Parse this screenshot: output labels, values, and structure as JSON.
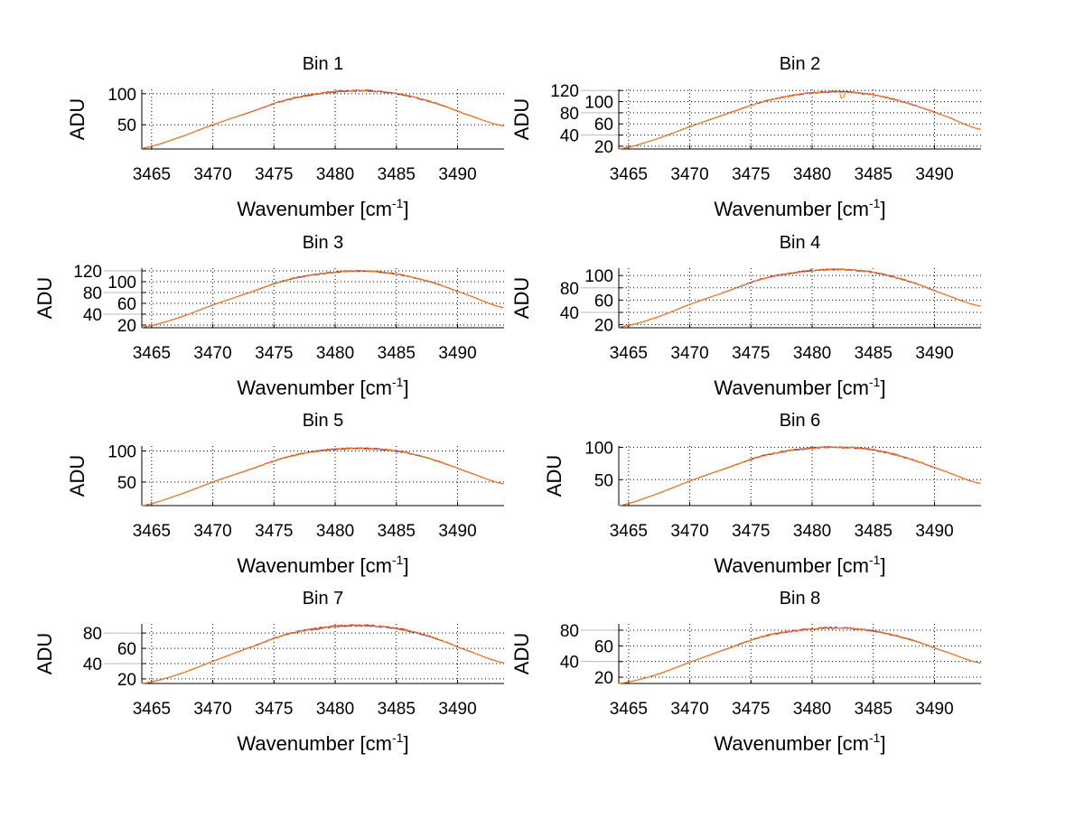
{
  "chart_data": [
    {
      "type": "line",
      "title": "Bin 1",
      "xlabel": "Wavenumber [cm",
      "xlabel_sup": "-1",
      "xlabel_end": "]",
      "ylabel": "ADU",
      "xlim": [
        3464.2,
        3493.8
      ],
      "ylim": [
        11,
        107
      ],
      "xticks": [
        3465,
        3470,
        3475,
        3480,
        3485,
        3490
      ],
      "yticks": [
        50,
        100
      ],
      "grid": true,
      "x": [
        3464.2,
        3467,
        3470,
        3473,
        3476,
        3479,
        3482,
        3485,
        3488,
        3491,
        3493.8
      ],
      "y": [
        12,
        28,
        50,
        70,
        90,
        101,
        105,
        100,
        86,
        65,
        48
      ]
    },
    {
      "type": "line",
      "title": "Bin 2",
      "xlabel": "Wavenumber [cm",
      "xlabel_sup": "-1",
      "xlabel_end": "]",
      "ylabel": "ADU",
      "xlim": [
        3464.2,
        3493.8
      ],
      "ylim": [
        15,
        122
      ],
      "xticks": [
        3465,
        3470,
        3475,
        3480,
        3485,
        3490
      ],
      "yticks": [
        20,
        40,
        60,
        80,
        100,
        120
      ],
      "grid": true,
      "x": [
        3464.2,
        3467,
        3470,
        3473,
        3476,
        3479,
        3482,
        3485,
        3488,
        3491,
        3493.8
      ],
      "y": [
        15,
        31,
        55,
        78,
        100,
        113,
        118,
        112,
        96,
        73,
        50
      ]
    },
    {
      "type": "line",
      "title": "Bin 3",
      "xlabel": "Wavenumber [cm",
      "xlabel_sup": "-1",
      "xlabel_end": "]",
      "ylabel": "ADU",
      "xlim": [
        3464.2,
        3493.8
      ],
      "ylim": [
        15,
        125
      ],
      "xticks": [
        3465,
        3470,
        3475,
        3480,
        3485,
        3490
      ],
      "yticks": [
        20,
        40,
        60,
        80,
        100,
        120
      ],
      "grid": true,
      "x": [
        3464.2,
        3467,
        3470,
        3473,
        3476,
        3479,
        3482,
        3485,
        3488,
        3491,
        3493.8
      ],
      "y": [
        16,
        32,
        57,
        80,
        103,
        115,
        120,
        114,
        98,
        74,
        52
      ]
    },
    {
      "type": "line",
      "title": "Bin 4",
      "xlabel": "Wavenumber [cm",
      "xlabel_sup": "-1",
      "xlabel_end": "]",
      "ylabel": "ADU",
      "xlim": [
        3464.2,
        3493.8
      ],
      "ylim": [
        15,
        112
      ],
      "xticks": [
        3465,
        3470,
        3475,
        3480,
        3485,
        3490
      ],
      "yticks": [
        20,
        40,
        60,
        80,
        100
      ],
      "grid": true,
      "x": [
        3464.2,
        3467,
        3470,
        3473,
        3476,
        3479,
        3482,
        3485,
        3488,
        3491,
        3493.8
      ],
      "y": [
        16,
        30,
        53,
        74,
        95,
        106,
        110,
        105,
        90,
        68,
        50
      ]
    },
    {
      "type": "line",
      "title": "Bin 5",
      "xlabel": "Wavenumber [cm",
      "xlabel_sup": "-1",
      "xlabel_end": "]",
      "ylabel": "ADU",
      "xlim": [
        3464.2,
        3493.8
      ],
      "ylim": [
        12,
        108
      ],
      "xticks": [
        3465,
        3470,
        3475,
        3480,
        3485,
        3490
      ],
      "yticks": [
        50,
        100
      ],
      "grid": true,
      "x": [
        3464.2,
        3467,
        3470,
        3473,
        3476,
        3479,
        3482,
        3485,
        3488,
        3491,
        3493.8
      ],
      "y": [
        12,
        28,
        50,
        70,
        90,
        101,
        104,
        100,
        86,
        65,
        47
      ]
    },
    {
      "type": "line",
      "title": "Bin 6",
      "xlabel": "Wavenumber [cm",
      "xlabel_sup": "-1",
      "xlabel_end": "]",
      "ylabel": "ADU",
      "xlim": [
        3464.2,
        3493.8
      ],
      "ylim": [
        10,
        102
      ],
      "xticks": [
        3465,
        3470,
        3475,
        3480,
        3485,
        3490
      ],
      "yticks": [
        50,
        100
      ],
      "grid": true,
      "x": [
        3464.2,
        3467,
        3470,
        3473,
        3476,
        3479,
        3482,
        3485,
        3488,
        3491,
        3493.8
      ],
      "y": [
        10,
        26,
        48,
        68,
        87,
        97,
        100,
        96,
        82,
        62,
        44
      ]
    },
    {
      "type": "line",
      "title": "Bin 7",
      "xlabel": "Wavenumber [cm",
      "xlabel_sup": "-1",
      "xlabel_end": "]",
      "ylabel": "ADU",
      "xlim": [
        3464.2,
        3493.8
      ],
      "ylim": [
        14,
        92
      ],
      "xticks": [
        3465,
        3470,
        3475,
        3480,
        3485,
        3490
      ],
      "yticks": [
        20,
        40,
        60,
        80
      ],
      "grid": true,
      "x": [
        3464.2,
        3467,
        3470,
        3473,
        3476,
        3479,
        3482,
        3485,
        3488,
        3491,
        3493.8
      ],
      "y": [
        14,
        25,
        43,
        61,
        78,
        87,
        90,
        86,
        74,
        56,
        41
      ]
    },
    {
      "type": "line",
      "title": "Bin 8",
      "xlabel": "Wavenumber [cm",
      "xlabel_sup": "-1",
      "xlabel_end": "]",
      "ylabel": "ADU",
      "xlim": [
        3464.2,
        3493.8
      ],
      "ylim": [
        12,
        88
      ],
      "xticks": [
        3465,
        3470,
        3475,
        3480,
        3485,
        3490
      ],
      "yticks": [
        20,
        40,
        60,
        80
      ],
      "grid": true,
      "x": [
        3464.2,
        3467,
        3470,
        3473,
        3476,
        3479,
        3482,
        3485,
        3488,
        3491,
        3493.8
      ],
      "y": [
        12,
        22,
        39,
        56,
        72,
        80,
        83,
        79,
        68,
        52,
        38
      ]
    }
  ],
  "series_colors": [
    "#2030c0",
    "#c02040",
    "#ff7f0e"
  ]
}
